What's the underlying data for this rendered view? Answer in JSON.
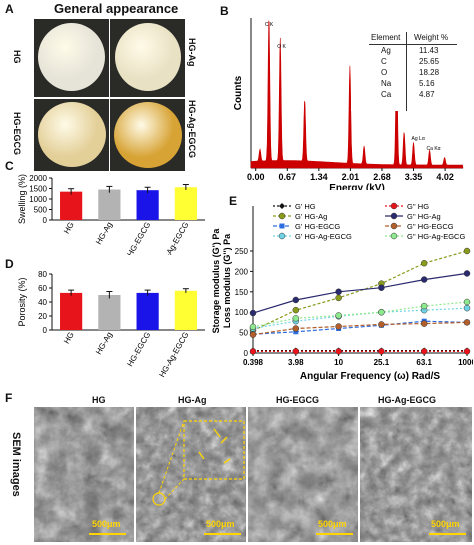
{
  "panel_a": {
    "label": "A",
    "title": "General appearance",
    "samples": [
      "HG",
      "HG-Ag",
      "HG-EGCG",
      "HG-Ag-EGCG"
    ],
    "disc_colors": [
      "#e6e3d8",
      "#e9e1c4",
      "#e3cf98",
      "#d7a335"
    ]
  },
  "panel_b": {
    "label": "B",
    "table": {
      "headers": [
        "Element",
        "Weight %"
      ],
      "rows": [
        [
          "Ag",
          "11.43"
        ],
        [
          "C",
          "25.65"
        ],
        [
          "O",
          "18.28"
        ],
        [
          "Na",
          "5.16"
        ],
        [
          "Ca",
          "4.87"
        ]
      ]
    },
    "peak_labels": [
      "C K",
      "O K",
      "Ag Lα",
      "Ca Kα"
    ]
  },
  "panel_c": {
    "label": "C"
  },
  "panel_d": {
    "label": "D"
  },
  "panel_e": {
    "label": "E"
  },
  "panel_f": {
    "label": "F",
    "side_label": "SEM images",
    "titles": [
      "HG",
      "HG-Ag",
      "HG-EGCG",
      "HG-Ag-EGCG"
    ],
    "scale_bar": "500μm"
  },
  "chart_data": [
    {
      "type": "area",
      "id": "B",
      "xlabel": "Energy (kV)",
      "ylabel": "Counts",
      "xticks": [
        "0.00",
        "0.67",
        "1.34",
        "2.01",
        "2.68",
        "3.35",
        "4.02"
      ],
      "xlim": [
        -0.1,
        4.4
      ],
      "color": "#cc0000",
      "peaks": [
        {
          "x": 0.09,
          "h": 0.08
        },
        {
          "x": 0.28,
          "h": 0.97
        },
        {
          "x": 0.52,
          "h": 0.82
        },
        {
          "x": 1.04,
          "h": 0.41
        },
        {
          "x": 2.0,
          "h": 0.65
        },
        {
          "x": 2.3,
          "h": 0.12
        },
        {
          "x": 2.99,
          "h": 0.72
        },
        {
          "x": 3.15,
          "h": 0.22
        },
        {
          "x": 3.35,
          "h": 0.15
        },
        {
          "x": 3.69,
          "h": 0.1
        },
        {
          "x": 4.01,
          "h": 0.05
        }
      ]
    },
    {
      "type": "bar",
      "id": "C",
      "ylabel": "Swelling (%)",
      "categories": [
        "HG",
        "HG-Ag",
        "HG-EGCG",
        "HG-Ag-EGCG"
      ],
      "values": [
        1350,
        1450,
        1420,
        1560
      ],
      "errors": [
        140,
        150,
        140,
        130
      ],
      "colors": [
        "#e8141b",
        "#b3b3b3",
        "#1b14e8",
        "#ffff33"
      ],
      "ylim": [
        0,
        2000
      ],
      "yticks": [
        "0",
        "500",
        "1000",
        "1500",
        "2000"
      ]
    },
    {
      "type": "bar",
      "id": "D",
      "ylabel": "Porosity (%)",
      "categories": [
        "HG",
        "HG-Ag",
        "HG-EGCG",
        "HG-Ag-EGCG"
      ],
      "values": [
        53,
        50,
        53,
        56
      ],
      "errors": [
        4,
        5,
        4,
        3
      ],
      "colors": [
        "#e8141b",
        "#b3b3b3",
        "#1b14e8",
        "#ffff33"
      ],
      "ylim": [
        0,
        80
      ],
      "yticks": [
        "0",
        "20",
        "40",
        "60",
        "80"
      ]
    },
    {
      "type": "line",
      "id": "E",
      "xlabel": "Angular Frequency (ω) Rad/S",
      "ylabel": [
        "Storage modulus (G') Pa",
        "Loss modulus (G'') Pa"
      ],
      "x": [
        "0.398",
        "3.98",
        "10",
        "25.1",
        "63.1",
        "1000"
      ],
      "yticks": [
        "0",
        "50",
        "100",
        "150",
        "200",
        "250"
      ],
      "ylim": [
        0,
        250
      ],
      "series": [
        {
          "name": "G' HG",
          "color": "#111111",
          "dash": "2,2",
          "marker": "diamond",
          "values": [
            6,
            6,
            6,
            6,
            6,
            6
          ]
        },
        {
          "name": "G'' HG",
          "color": "#e8141b",
          "dash": "2,2",
          "marker": "circle",
          "values": [
            4,
            4,
            4,
            4,
            4,
            4
          ]
        },
        {
          "name": "G' HG-Ag",
          "color": "#8a9a1a",
          "dash": "3,2",
          "marker": "circle",
          "values": [
            55,
            105,
            135,
            170,
            220,
            250
          ]
        },
        {
          "name": "G'' HG-Ag",
          "color": "#2a2a6e",
          "dash": "",
          "marker": "circle",
          "values": [
            98,
            130,
            150,
            160,
            180,
            195
          ]
        },
        {
          "name": "G' HG-EGCG",
          "color": "#2e6de0",
          "dash": "4,2",
          "marker": "square",
          "values": [
            46,
            52,
            60,
            68,
            78,
            75
          ]
        },
        {
          "name": "G'' HG-EGCG",
          "color": "#b25f2a",
          "dash": "4,2",
          "marker": "circle",
          "values": [
            45,
            60,
            65,
            70,
            72,
            75
          ]
        },
        {
          "name": "G' HG-Ag-EGCG",
          "color": "#6fd3e6",
          "dash": "2,2",
          "marker": "circle",
          "values": [
            60,
            78,
            90,
            100,
            105,
            110
          ]
        },
        {
          "name": "G'' HG-Ag-EGCG",
          "color": "#8ee88e",
          "dash": "2,2",
          "marker": "circle",
          "values": [
            64,
            85,
            92,
            100,
            115,
            125
          ]
        }
      ]
    }
  ]
}
